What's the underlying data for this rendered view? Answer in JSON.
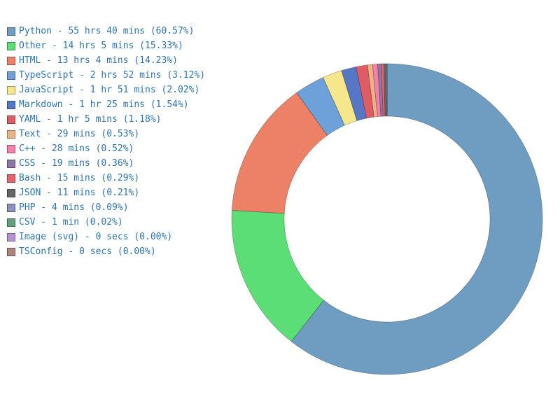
{
  "chart_data": {
    "type": "pie",
    "donut": true,
    "legend_placement": "top-left",
    "slices": [
      {
        "label": "Python - 55 hrs 40 mins (60.57%)",
        "value": 60.57,
        "color": "#6f9cc1"
      },
      {
        "label": "Other - 14 hrs 5 mins (15.33%)",
        "value": 15.33,
        "color": "#5ade75"
      },
      {
        "label": "HTML - 13 hrs 4 mins (14.23%)",
        "value": 14.23,
        "color": "#ec8166"
      },
      {
        "label": "TypeScript - 2 hrs 52 mins (3.12%)",
        "value": 3.12,
        "color": "#6ea0da"
      },
      {
        "label": "JavaScript - 1 hr 51 mins (2.02%)",
        "value": 2.02,
        "color": "#f6e78c"
      },
      {
        "label": "Markdown - 1 hr 25 mins (1.54%)",
        "value": 1.54,
        "color": "#5577c6"
      },
      {
        "label": "YAML - 1 hr 5 mins (1.18%)",
        "value": 1.18,
        "color": "#e05c64"
      },
      {
        "label": "Text - 29 mins (0.53%)",
        "value": 0.53,
        "color": "#edb286"
      },
      {
        "label": "C++ - 28 mins (0.52%)",
        "value": 0.52,
        "color": "#f57fa6"
      },
      {
        "label": "CSS - 19 mins (0.36%)",
        "value": 0.36,
        "color": "#8c77a7"
      },
      {
        "label": "Bash - 15 mins (0.29%)",
        "value": 0.29,
        "color": "#e7636a"
      },
      {
        "label": "JSON - 11 mins (0.21%)",
        "value": 0.21,
        "color": "#666666"
      },
      {
        "label": "PHP - 4 mins (0.09%)",
        "value": 0.09,
        "color": "#8a91bd"
      },
      {
        "label": "CSV - 1 min (0.02%)",
        "value": 0.02,
        "color": "#62a07c"
      },
      {
        "label": "Image (svg) - 0 secs (0.00%)",
        "value": 0.0,
        "color": "#b592d6"
      },
      {
        "label": "TSConfig - 0 secs (0.00%)",
        "value": 0.0,
        "color": "#ad837e"
      }
    ]
  }
}
